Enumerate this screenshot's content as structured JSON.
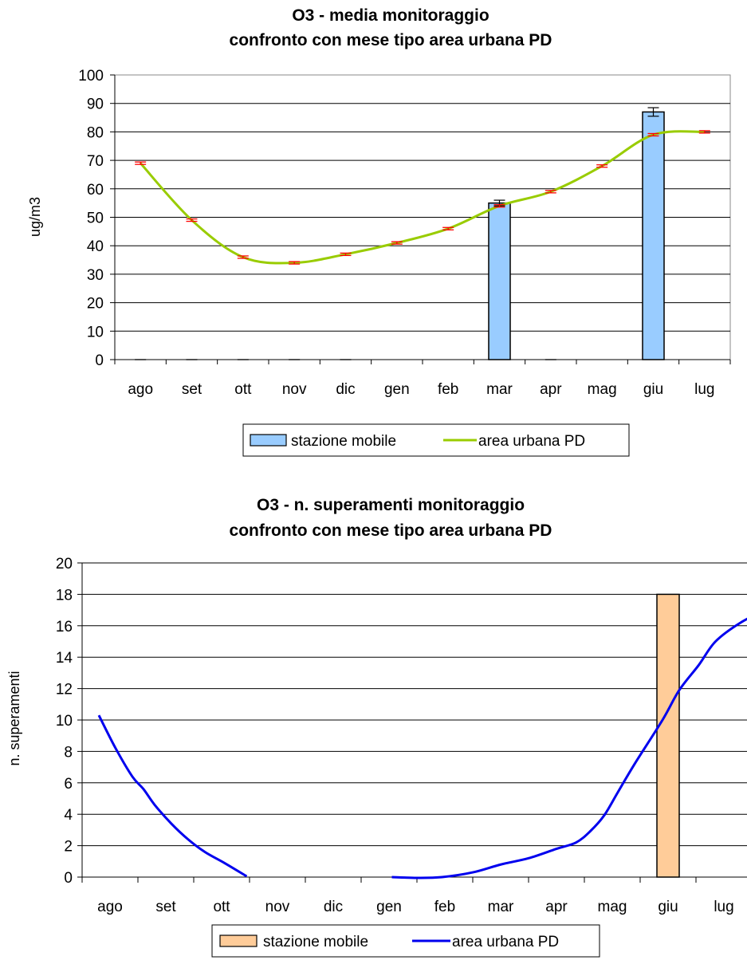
{
  "chart_data": [
    {
      "type": "bar",
      "title_line1": "O3 - media monitoraggio",
      "title_line2": "confronto con mese tipo area urbana PD",
      "ylabel": "ug/m3",
      "ylim": [
        0,
        100
      ],
      "yticks": [
        "0",
        "10",
        "20",
        "30",
        "40",
        "50",
        "60",
        "70",
        "80",
        "90",
        "100"
      ],
      "categories": [
        "ago",
        "set",
        "ott",
        "nov",
        "dic",
        "gen",
        "feb",
        "mar",
        "apr",
        "mag",
        "giu",
        "lug"
      ],
      "series": [
        {
          "name": "stazione mobile",
          "type": "bar",
          "color": "#99ccff",
          "values": [
            0,
            0,
            0,
            0,
            0,
            null,
            null,
            55,
            0,
            null,
            87,
            null
          ],
          "error": [
            0,
            0,
            0,
            0,
            0,
            null,
            null,
            1,
            0,
            null,
            1.5,
            null
          ]
        },
        {
          "name": "area urbana PD",
          "type": "line",
          "color": "#99cc00",
          "values": [
            69,
            49,
            36,
            34,
            37,
            41,
            46,
            54,
            59,
            68,
            79,
            80
          ],
          "error_color": "#ff0000"
        }
      ],
      "grid": true,
      "legend": "bottom"
    },
    {
      "type": "bar",
      "title_line1": "O3 - n. superamenti monitoraggio",
      "title_line2": "confronto con mese tipo area urbana PD",
      "ylabel": "n. superamenti",
      "ylim": [
        0,
        20
      ],
      "yticks": [
        "0",
        "2",
        "4",
        "6",
        "8",
        "10",
        "12",
        "14",
        "16",
        "18",
        "20"
      ],
      "categories": [
        "ago",
        "set",
        "ott",
        "nov",
        "dic",
        "gen",
        "feb",
        "mar",
        "apr",
        "mag",
        "giu",
        "lug"
      ],
      "series": [
        {
          "name": "stazione mobile",
          "type": "bar",
          "color": "#ffcc99",
          "values": [
            null,
            null,
            null,
            null,
            null,
            null,
            null,
            null,
            null,
            null,
            18,
            null
          ]
        },
        {
          "name": "area urbana PD",
          "type": "line",
          "color": "#0000ee",
          "points": [
            [
              0.3,
              10.3
            ],
            [
              0.6,
              8.2
            ],
            [
              0.9,
              6.4
            ],
            [
              1.1,
              5.6
            ],
            [
              1.3,
              4.6
            ],
            [
              1.6,
              3.4
            ],
            [
              1.9,
              2.4
            ],
            [
              2.2,
              1.6
            ],
            [
              2.55,
              0.9
            ],
            [
              2.95,
              0.05
            ],
            [
              null,
              null
            ],
            [
              5.55,
              0
            ],
            [
              6.0,
              -0.05
            ],
            [
              6.45,
              0
            ],
            [
              7.0,
              0.3
            ],
            [
              7.5,
              0.8
            ],
            [
              8.0,
              1.2
            ],
            [
              8.5,
              1.8
            ],
            [
              8.85,
              2.2
            ],
            [
              9.1,
              2.9
            ],
            [
              9.35,
              3.9
            ],
            [
              9.6,
              5.4
            ],
            [
              9.9,
              7.2
            ],
            [
              10.4,
              10.0
            ],
            [
              10.7,
              11.9
            ],
            [
              11.05,
              13.5
            ],
            [
              11.35,
              15.0
            ],
            [
              11.8,
              16.2
            ],
            [
              12.3,
              17.1
            ],
            [
              12.7,
              17.8
            ]
          ]
        }
      ],
      "grid": true,
      "legend": "bottom"
    }
  ]
}
